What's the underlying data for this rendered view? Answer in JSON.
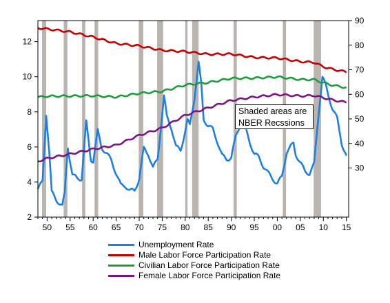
{
  "chart_data": {
    "type": "line",
    "x_ticks": [
      "50",
      "55",
      "60",
      "65",
      "70",
      "75",
      "80",
      "85",
      "90",
      "95",
      "00",
      "05",
      "10",
      "15"
    ],
    "x_range": [
      1948,
      2015.5
    ],
    "left_axis": {
      "ticks": [
        2,
        4,
        6,
        8,
        10,
        12
      ],
      "range": [
        2,
        13.2
      ]
    },
    "right_axis": {
      "ticks": [
        30,
        40,
        50,
        60,
        70,
        80,
        90
      ],
      "range": [
        10,
        90
      ]
    },
    "recessions": [
      [
        1948.9,
        1949.8
      ],
      [
        1953.6,
        1954.4
      ],
      [
        1957.6,
        1958.3
      ],
      [
        1960.3,
        1961.1
      ],
      [
        1969.9,
        1970.9
      ],
      [
        1973.9,
        1975.2
      ],
      [
        1980.0,
        1980.5
      ],
      [
        1981.5,
        1982.9
      ],
      [
        1990.5,
        1991.2
      ],
      [
        2001.2,
        2001.9
      ],
      [
        2007.9,
        2009.5
      ]
    ],
    "annotation": [
      "Shaded areas are",
      "NBER Recssions"
    ],
    "series": [
      {
        "name": "Unemployment Rate",
        "axis": "left",
        "color": "#1f7fe0",
        "points": [
          [
            1948,
            3.6
          ],
          [
            1949,
            4.0
          ],
          [
            1949.8,
            7.9
          ],
          [
            1950.5,
            5.6
          ],
          [
            1951,
            3.4
          ],
          [
            1952,
            3.0
          ],
          [
            1953.3,
            2.6
          ],
          [
            1953.8,
            3.3
          ],
          [
            1954.5,
            6.0
          ],
          [
            1955.5,
            4.4
          ],
          [
            1956.5,
            4.2
          ],
          [
            1957.5,
            4.2
          ],
          [
            1958.5,
            7.4
          ],
          [
            1959.5,
            5.3
          ],
          [
            1960,
            5.2
          ],
          [
            1961,
            6.9
          ],
          [
            1961.8,
            6.0
          ],
          [
            1963,
            5.6
          ],
          [
            1964,
            5.2
          ],
          [
            1965,
            4.5
          ],
          [
            1966,
            3.8
          ],
          [
            1967,
            3.8
          ],
          [
            1968,
            3.5
          ],
          [
            1969,
            3.5
          ],
          [
            1970,
            4.2
          ],
          [
            1971,
            5.9
          ],
          [
            1972,
            5.6
          ],
          [
            1973,
            4.8
          ],
          [
            1974,
            5.3
          ],
          [
            1975.4,
            8.9
          ],
          [
            1976,
            7.7
          ],
          [
            1977,
            7.1
          ],
          [
            1978,
            6.0
          ],
          [
            1979,
            5.8
          ],
          [
            1980.5,
            7.5
          ],
          [
            1981,
            7.2
          ],
          [
            1982,
            8.8
          ],
          [
            1982.9,
            10.8
          ],
          [
            1983.5,
            9.5
          ],
          [
            1984,
            7.6
          ],
          [
            1985,
            7.2
          ],
          [
            1986,
            7.0
          ],
          [
            1987,
            6.3
          ],
          [
            1988,
            5.5
          ],
          [
            1989,
            5.3
          ],
          [
            1990,
            5.4
          ],
          [
            1991,
            6.6
          ],
          [
            1992.5,
            7.7
          ],
          [
            1993,
            7.1
          ],
          [
            1994,
            6.3
          ],
          [
            1995,
            5.6
          ],
          [
            1996,
            5.4
          ],
          [
            1997,
            4.9
          ],
          [
            1998,
            4.5
          ],
          [
            1999,
            4.2
          ],
          [
            2000,
            3.9
          ],
          [
            2001,
            4.3
          ],
          [
            2002,
            5.7
          ],
          [
            2003.5,
            6.2
          ],
          [
            2004,
            5.6
          ],
          [
            2005,
            5.1
          ],
          [
            2006,
            4.6
          ],
          [
            2007,
            4.5
          ],
          [
            2008,
            5.0
          ],
          [
            2009,
            8.0
          ],
          [
            2009.8,
            10.0
          ],
          [
            2010.5,
            9.5
          ],
          [
            2011,
            9.0
          ],
          [
            2012,
            8.2
          ],
          [
            2013,
            7.6
          ],
          [
            2014,
            6.2
          ],
          [
            2015,
            5.5
          ]
        ]
      },
      {
        "name": "Male Labor Force Participation Rate",
        "axis": "right",
        "color": "#c00000",
        "points": [
          [
            1948,
            87.0
          ],
          [
            1950,
            86.6
          ],
          [
            1955,
            85.4
          ],
          [
            1960,
            83.3
          ],
          [
            1965,
            80.7
          ],
          [
            1970,
            79.7
          ],
          [
            1975,
            77.9
          ],
          [
            1980,
            77.4
          ],
          [
            1985,
            76.3
          ],
          [
            1990,
            76.4
          ],
          [
            1995,
            75.0
          ],
          [
            2000,
            74.8
          ],
          [
            2005,
            73.3
          ],
          [
            2008,
            73.0
          ],
          [
            2010,
            71.2
          ],
          [
            2012,
            70.2
          ],
          [
            2015,
            69.1
          ]
        ]
      },
      {
        "name": "Civilian Labor Force Participation Rate",
        "axis": "right",
        "color": "#1f9a3c",
        "points": [
          [
            1948,
            58.8
          ],
          [
            1950,
            59.2
          ],
          [
            1955,
            59.3
          ],
          [
            1960,
            59.4
          ],
          [
            1965,
            58.9
          ],
          [
            1970,
            60.4
          ],
          [
            1975,
            61.2
          ],
          [
            1980,
            63.8
          ],
          [
            1985,
            64.8
          ],
          [
            1990,
            66.5
          ],
          [
            1995,
            66.6
          ],
          [
            2000,
            67.1
          ],
          [
            2005,
            66.0
          ],
          [
            2008,
            66.0
          ],
          [
            2010,
            64.7
          ],
          [
            2012,
            63.7
          ],
          [
            2015,
            62.7
          ]
        ]
      },
      {
        "name": "Female Labor Force Participation Rate",
        "axis": "right",
        "color": "#7b157f",
        "points": [
          [
            1948,
            32.7
          ],
          [
            1950,
            33.9
          ],
          [
            1955,
            35.7
          ],
          [
            1960,
            37.7
          ],
          [
            1965,
            39.3
          ],
          [
            1970,
            43.3
          ],
          [
            1975,
            46.3
          ],
          [
            1980,
            51.5
          ],
          [
            1985,
            54.5
          ],
          [
            1990,
            57.5
          ],
          [
            1995,
            58.9
          ],
          [
            2000,
            59.9
          ],
          [
            2005,
            59.3
          ],
          [
            2008,
            59.5
          ],
          [
            2010,
            58.6
          ],
          [
            2012,
            57.7
          ],
          [
            2015,
            56.7
          ]
        ]
      }
    ]
  }
}
